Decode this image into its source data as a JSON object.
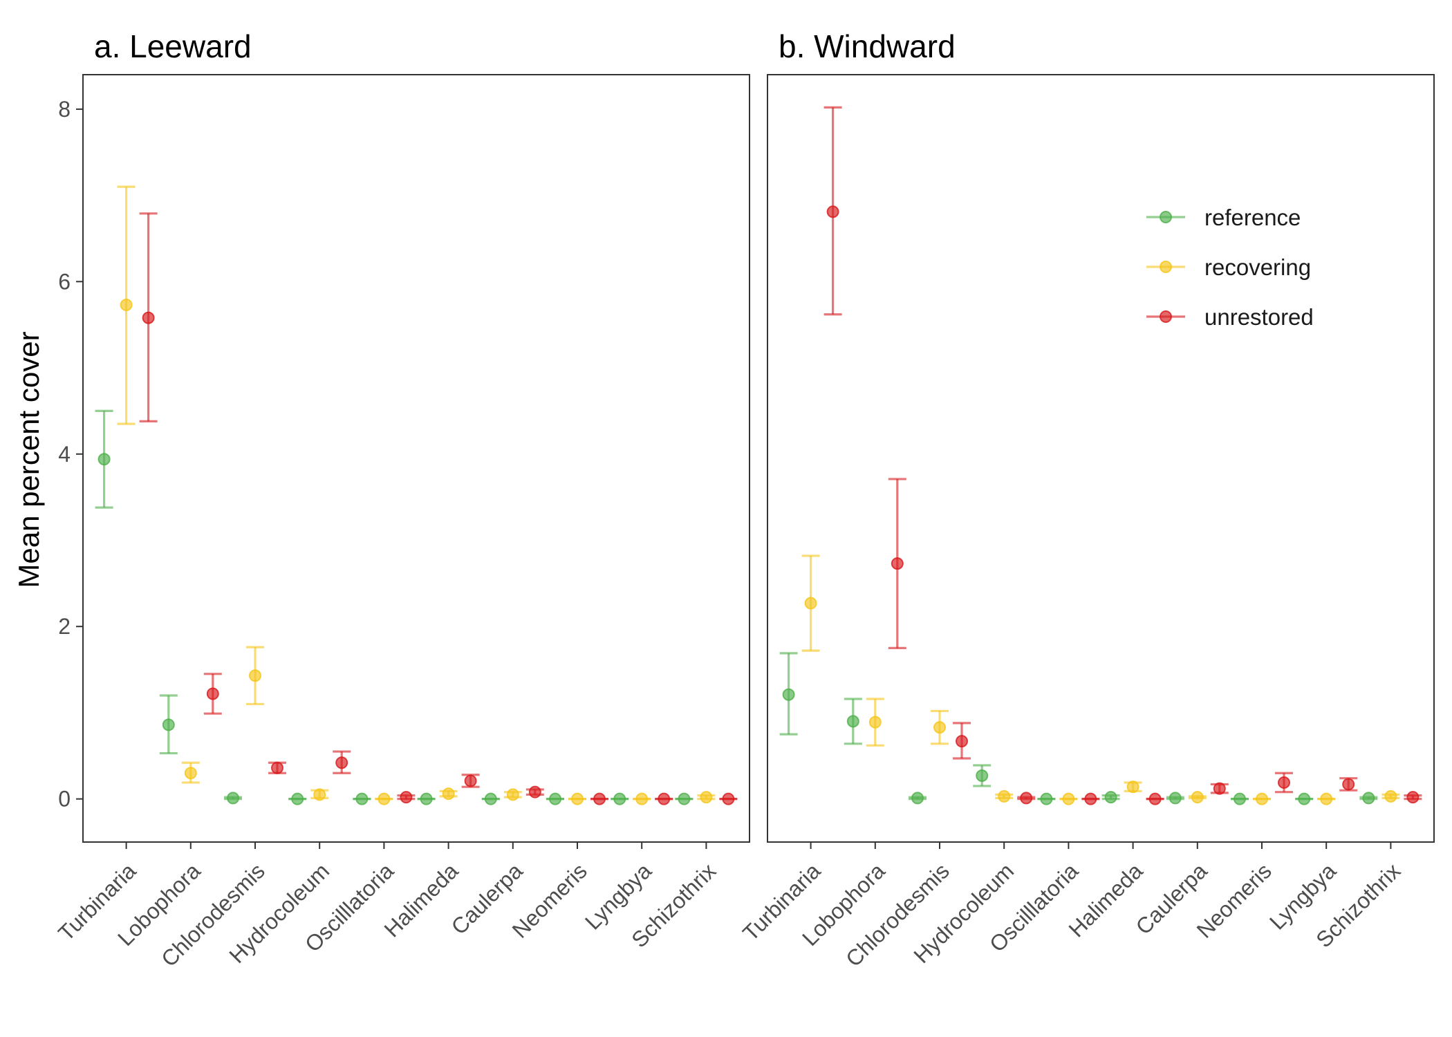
{
  "chart_data": {
    "type": "scatter",
    "ylabel": "Mean percent cover",
    "ylim": [
      -0.5,
      8.4
    ],
    "yticks": [
      0,
      2,
      4,
      6,
      8
    ],
    "categories": [
      "Turbinaria",
      "Lobophora",
      "Chlorodesmis",
      "Hydrocoleum",
      "Oscilllatoria",
      "Halimeda",
      "Caulerpa",
      "Neomeris",
      "Lyngbya",
      "Schizothrix"
    ],
    "series_colors": {
      "reference": "#4daf4a",
      "recovering": "#f5c518",
      "unrestored": "#d7191c"
    },
    "legend": {
      "position": "top-right",
      "entries": [
        "reference",
        "recovering",
        "unrestored"
      ]
    },
    "panels": [
      {
        "title": "a. Leeward",
        "series": [
          {
            "name": "reference",
            "mean": [
              3.94,
              0.86,
              0.01,
              0.0,
              0.0,
              0.0,
              0.0,
              0.0,
              0.0,
              0.0
            ],
            "lower": [
              3.38,
              0.53,
              0.0,
              0.0,
              0.0,
              0.0,
              0.0,
              0.0,
              0.0,
              0.0
            ],
            "upper": [
              4.5,
              1.2,
              0.02,
              0.0,
              0.0,
              0.0,
              0.0,
              0.0,
              0.0,
              0.0
            ]
          },
          {
            "name": "recovering",
            "mean": [
              5.73,
              0.3,
              1.43,
              0.05,
              0.0,
              0.06,
              0.05,
              0.0,
              0.0,
              0.02
            ],
            "lower": [
              4.35,
              0.19,
              1.1,
              0.01,
              0.0,
              0.03,
              0.02,
              0.0,
              0.0,
              0.0
            ],
            "upper": [
              7.1,
              0.42,
              1.76,
              0.1,
              0.0,
              0.09,
              0.08,
              0.0,
              0.0,
              0.04
            ]
          },
          {
            "name": "unrestored",
            "mean": [
              5.58,
              1.22,
              0.36,
              0.42,
              0.02,
              0.21,
              0.08,
              0.0,
              0.0,
              0.0
            ],
            "lower": [
              4.38,
              0.99,
              0.3,
              0.3,
              0.0,
              0.14,
              0.05,
              0.0,
              0.0,
              0.0
            ],
            "upper": [
              6.79,
              1.45,
              0.42,
              0.55,
              0.04,
              0.28,
              0.11,
              0.0,
              0.0,
              0.0
            ]
          }
        ]
      },
      {
        "title": "b. Windward",
        "series": [
          {
            "name": "reference",
            "mean": [
              1.21,
              0.9,
              0.01,
              0.27,
              0.0,
              0.02,
              0.01,
              0.0,
              0.0,
              0.01
            ],
            "lower": [
              0.75,
              0.64,
              0.0,
              0.15,
              0.0,
              0.0,
              0.0,
              0.0,
              0.0,
              0.0
            ],
            "upper": [
              1.69,
              1.16,
              0.02,
              0.39,
              0.0,
              0.04,
              0.02,
              0.0,
              0.0,
              0.02
            ]
          },
          {
            "name": "recovering",
            "mean": [
              2.27,
              0.89,
              0.83,
              0.03,
              0.0,
              0.14,
              0.02,
              0.0,
              0.0,
              0.03
            ],
            "lower": [
              1.72,
              0.62,
              0.64,
              0.01,
              0.0,
              0.09,
              0.01,
              0.0,
              0.0,
              0.01
            ],
            "upper": [
              2.82,
              1.16,
              1.02,
              0.05,
              0.0,
              0.19,
              0.03,
              0.0,
              0.0,
              0.05
            ]
          },
          {
            "name": "unrestored",
            "mean": [
              6.81,
              2.73,
              0.67,
              0.01,
              0.0,
              0.0,
              0.12,
              0.19,
              0.17,
              0.02
            ],
            "lower": [
              5.62,
              1.75,
              0.47,
              0.0,
              0.0,
              0.0,
              0.07,
              0.08,
              0.1,
              0.0
            ],
            "upper": [
              8.02,
              3.71,
              0.88,
              0.02,
              0.0,
              0.0,
              0.17,
              0.3,
              0.24,
              0.04
            ]
          }
        ]
      }
    ]
  }
}
